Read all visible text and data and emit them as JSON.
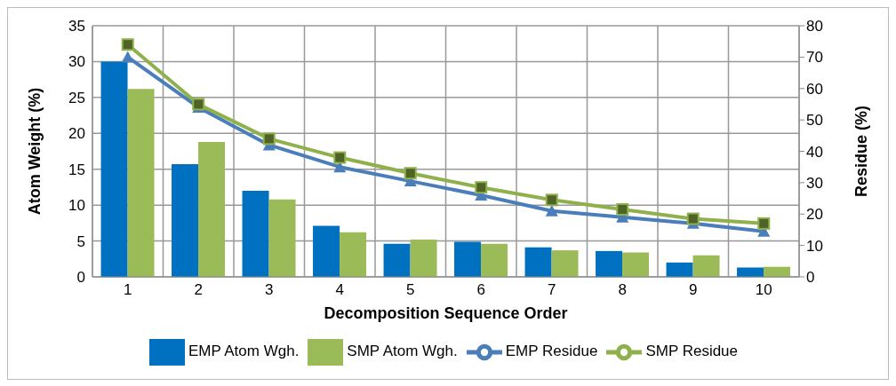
{
  "chart_data": {
    "type": "bar",
    "xlabel": "Decomposition Sequence Order",
    "ylabel": "Atom Weight  (%)",
    "y2label": "Residue (%)",
    "categories": [
      "1",
      "2",
      "3",
      "4",
      "5",
      "6",
      "7",
      "8",
      "9",
      "10"
    ],
    "series": [
      {
        "name": "EMP Atom Wgh.",
        "color": "#0070c0",
        "values": [
          30,
          15.7,
          12,
          7.1,
          4.6,
          4.9,
          4.1,
          3.6,
          2.0,
          1.3
        ]
      },
      {
        "name": "SMP Atom Wgh.",
        "color": "#9bbb59",
        "values": [
          26.2,
          18.8,
          10.8,
          6.2,
          5.2,
          4.6,
          3.7,
          3.4,
          3.0,
          1.4
        ]
      },
      {
        "name": "EMP Residue",
        "type": "line",
        "axis": "y2",
        "color": "#4a7ebb",
        "marker": "triangle",
        "values": [
          70,
          54,
          42,
          35,
          30.5,
          26,
          21,
          19,
          17,
          14.5
        ]
      },
      {
        "name": "SMP Residue",
        "type": "line",
        "axis": "y2",
        "color": "#8fb04a",
        "marker": "square",
        "values": [
          74,
          55,
          44,
          38,
          33,
          28.5,
          24.5,
          21.5,
          18.5,
          17
        ]
      }
    ],
    "ylim": [
      0,
      35
    ],
    "yticks": [
      0,
      5,
      10,
      15,
      20,
      25,
      30,
      35
    ],
    "y2lim": [
      0,
      80
    ],
    "y2ticks": [
      0,
      10,
      20,
      30,
      40,
      50,
      60,
      70,
      80
    ],
    "grid": true,
    "legend": "bottom"
  }
}
